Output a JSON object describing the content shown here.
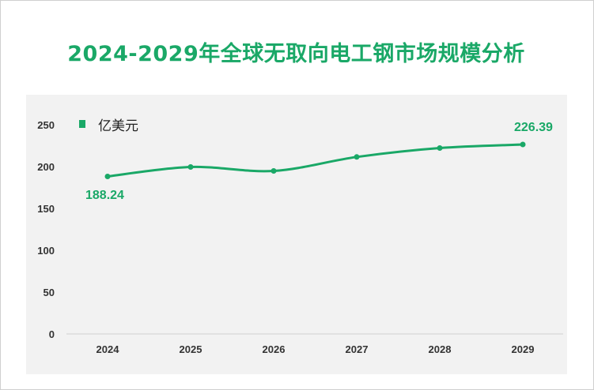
{
  "chart_data": {
    "type": "line",
    "title": "2024-2029年全球无取向电工钢市场规模分析",
    "categories": [
      "2024",
      "2025",
      "2026",
      "2027",
      "2028",
      "2029"
    ],
    "series": [
      {
        "name": "亿美元",
        "values": [
          188.24,
          199.5,
          194.8,
          211.5,
          222.2,
          226.39
        ],
        "color": "#1aa867"
      }
    ],
    "data_labels": {
      "first": "188.24",
      "last": "226.39"
    },
    "y_ticks": [
      "250",
      "200",
      "150",
      "100",
      "50",
      "0"
    ],
    "ylim": [
      0,
      250
    ],
    "grid": false,
    "legend_position": "top-left"
  }
}
